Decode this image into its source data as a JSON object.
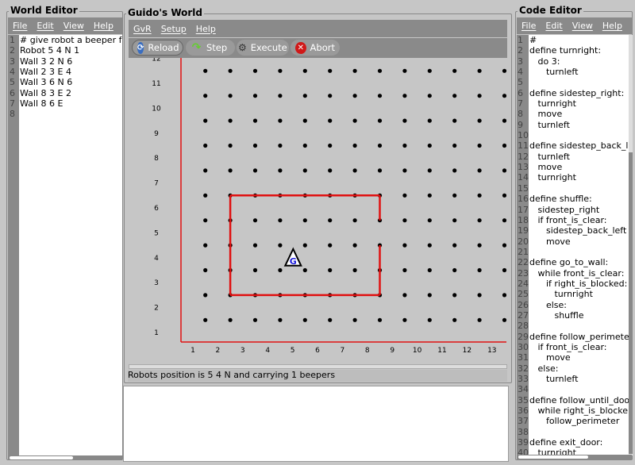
{
  "world_editor": {
    "title": "World Editor",
    "menu": [
      "File",
      "Edit",
      "View",
      "Help"
    ],
    "lines": [
      "# give robot a beeper fo",
      "Robot 5 4 N 1",
      "Wall 3 2 N 6",
      "Wall 2 3 E 4",
      "Wall 3 6 N 6",
      "Wall 8 3 E 2",
      "Wall 8 6 E",
      ""
    ]
  },
  "guido_world": {
    "title": "Guido's World",
    "menu": [
      "GvR",
      "Setup",
      "Help"
    ],
    "toolbar": [
      {
        "label": "Reload",
        "icon": "reload-icon"
      },
      {
        "label": "Step",
        "icon": "step-arrow-icon"
      },
      {
        "label": "Execute",
        "icon": "gears-icon"
      },
      {
        "label": "Abort",
        "icon": "abort-x-icon"
      }
    ],
    "x_labels": [
      "1",
      "2",
      "3",
      "4",
      "5",
      "6",
      "7",
      "8",
      "9",
      "10",
      "11",
      "12",
      "13"
    ],
    "y_labels": [
      "1",
      "2",
      "3",
      "4",
      "5",
      "6",
      "7",
      "8",
      "9",
      "10",
      "11",
      "12"
    ],
    "robot": {
      "x": 5,
      "y": 4,
      "dir": "N",
      "beepers": 1,
      "glyph": "G"
    },
    "status": "Robots position is 5 4 N and carrying 1 beepers",
    "colors": {
      "wall": "#e01010",
      "robot_letter": "#1a1adc"
    }
  },
  "code_editor": {
    "title": "Code Editor",
    "menu": [
      "File",
      "Edit",
      "View",
      "Help"
    ],
    "lines": [
      "#",
      "define turnright:",
      "   do 3:",
      "      turnleft",
      "",
      "define sidestep_right:",
      "   turnright",
      "   move",
      "   turnleft",
      "",
      "define sidestep_back_l",
      "   turnleft",
      "   move",
      "   turnright",
      "",
      "define shuffle:",
      "   sidestep_right",
      "   if front_is_clear:",
      "      sidestep_back_left",
      "      move",
      "",
      "define go_to_wall:",
      "   while front_is_clear:",
      "      if right_is_blocked:",
      "         turnright",
      "      else:",
      "         shuffle",
      "",
      "define follow_perimeter",
      "   if front_is_clear:",
      "      move",
      "   else:",
      "      turnleft",
      "",
      "define follow_until_doo",
      "   while right_is_blocke",
      "      follow_perimeter",
      "",
      "define exit_door:",
      "   turnright"
    ]
  }
}
